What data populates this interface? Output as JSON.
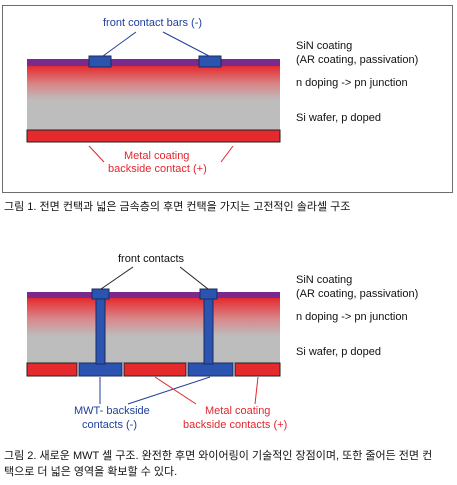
{
  "figure1": {
    "label_top": "front contact bars  (-)",
    "label_sin": "SiN coating",
    "label_ar": "(AR coating, passivation)",
    "label_ndoping": "n doping -> pn junction",
    "label_si": "Si wafer, p doped",
    "label_metal1": "Metal coating",
    "label_metal2": "backside contact (+)",
    "caption": "그림 1. 전면 컨택과 넓은 금속층의 후면 컨택을 가지는 고전적인 솔라셀 구조"
  },
  "figure2": {
    "label_top": "front contacts",
    "label_sin": "SiN coating",
    "label_ar": "(AR coating, passivation)",
    "label_ndoping": "n doping -> pn junction",
    "label_si": "Si wafer, p doped",
    "label_mwt1": "MWT- backside",
    "label_mwt2": "contacts (-)",
    "label_metal1": "Metal coating",
    "label_metal2": "backside contacts (+)",
    "caption_line1": "그림 2. 새로운 MWT 셀 구조. 완전한 후면 와이어링이 기술적인 장점이며, 또한 줄어든 전면 컨",
    "caption_line2": "택으로 더 넓은 영역을 확보할 수 있다."
  },
  "colors": {
    "sin": "#7a2a8c",
    "contact_blue": "#2a54b0",
    "metal_red": "#e4262e",
    "label_blue": "#1f3f9a"
  }
}
